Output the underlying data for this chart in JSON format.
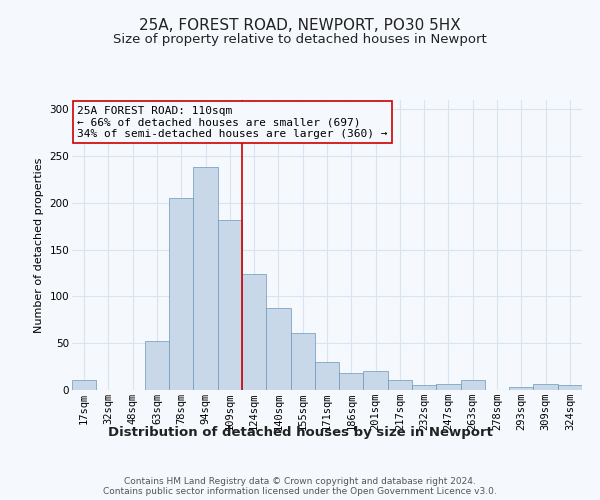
{
  "title": "25A, FOREST ROAD, NEWPORT, PO30 5HX",
  "subtitle": "Size of property relative to detached houses in Newport",
  "xlabel": "Distribution of detached houses by size in Newport",
  "ylabel": "Number of detached properties",
  "bar_color": "#c8d8e8",
  "bar_edge_color": "#6699bb",
  "bar_heights": [
    11,
    0,
    0,
    52,
    205,
    238,
    182,
    124,
    88,
    61,
    30,
    18,
    20,
    11,
    5,
    6,
    11,
    0,
    3,
    6,
    5
  ],
  "x_labels": [
    "17sqm",
    "32sqm",
    "48sqm",
    "63sqm",
    "78sqm",
    "94sqm",
    "109sqm",
    "124sqm",
    "140sqm",
    "155sqm",
    "171sqm",
    "186sqm",
    "201sqm",
    "217sqm",
    "232sqm",
    "247sqm",
    "263sqm",
    "278sqm",
    "293sqm",
    "309sqm",
    "324sqm"
  ],
  "ylim": [
    0,
    310
  ],
  "yticks": [
    0,
    50,
    100,
    150,
    200,
    250,
    300
  ],
  "vline_x_idx": 6,
  "vline_color": "#cc0000",
  "annotation_text": "25A FOREST ROAD: 110sqm\n← 66% of detached houses are smaller (697)\n34% of semi-detached houses are larger (360) →",
  "annotation_box_edge": "#cc0000",
  "footer_line1": "Contains HM Land Registry data © Crown copyright and database right 2024.",
  "footer_line2": "Contains public sector information licensed under the Open Government Licence v3.0.",
  "background_color": "#f5f8fc",
  "grid_color": "#d8e4f0",
  "title_fontsize": 11,
  "subtitle_fontsize": 9.5,
  "xlabel_fontsize": 9.5,
  "ylabel_fontsize": 8,
  "tick_fontsize": 7.5,
  "annotation_fontsize": 8,
  "footer_fontsize": 6.5
}
